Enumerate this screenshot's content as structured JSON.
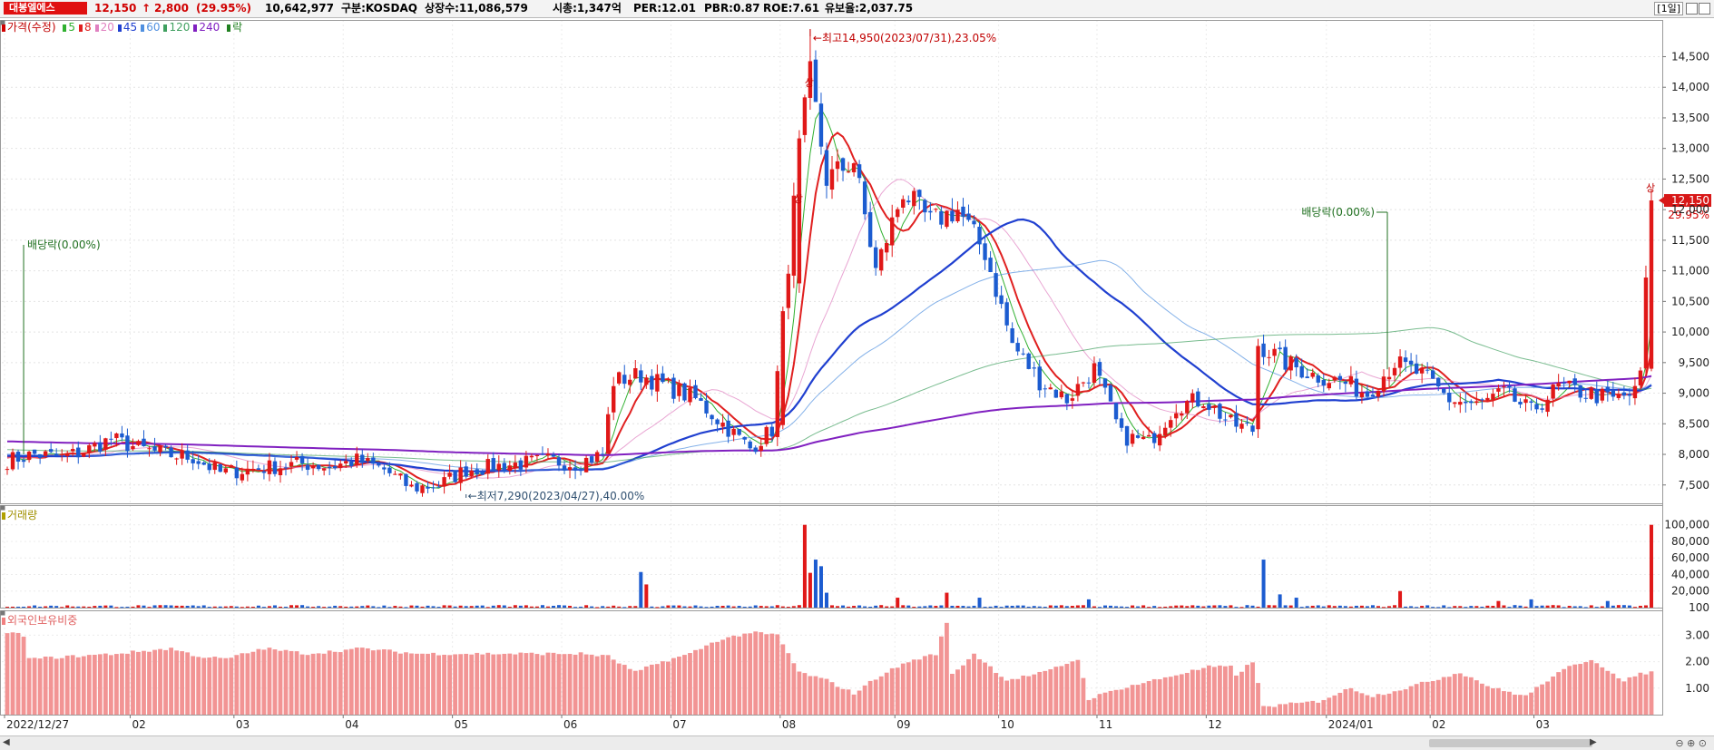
{
  "header": {
    "stock_name": "대봉엘에스",
    "price": "12,150",
    "change_arrow": "↑",
    "change": "2,800",
    "change_pct": "(29.95%)",
    "volume": "10,642,977",
    "market": "구분:KOSDAQ",
    "shares": "상장수:11,086,579",
    "market_cap": "시총:1,347억",
    "per": "PER:12.01",
    "pbr": "PBR:0.87",
    "roe": "ROE:7.61",
    "float_ratio": "유보율:2,037.75",
    "period": "[1일]"
  },
  "legend": {
    "price_label": "가격(수정)",
    "ma": [
      {
        "label": "5",
        "color": "#30b030"
      },
      {
        "label": "8",
        "color": "#e02020"
      },
      {
        "label": "20",
        "color": "#e080c0"
      },
      {
        "label": "45",
        "color": "#2040d0"
      },
      {
        "label": "60",
        "color": "#5090e0"
      },
      {
        "label": "120",
        "color": "#40a060"
      },
      {
        "label": "240",
        "color": "#8020c0"
      }
    ],
    "ex_label": "락"
  },
  "panels": {
    "volume_label": "거래량",
    "foreign_label": "외국인보유비중"
  },
  "chart_data": [
    {
      "type": "candlestick",
      "title": "대봉엘에스 가격(수정)",
      "x_ticks": [
        "2022/12/27",
        "02",
        "03",
        "04",
        "05",
        "06",
        "07",
        "08",
        "09",
        "10",
        "11",
        "12",
        "2024/01",
        "02",
        "03"
      ],
      "ylim": [
        7200,
        15100
      ],
      "y_ticks": [
        7500,
        8000,
        8500,
        9000,
        9500,
        10000,
        10500,
        11000,
        11500,
        12000,
        12500,
        13000,
        13500,
        14000,
        14500
      ],
      "y_tick_labels": [
        "7,500",
        "8,000",
        "8,500",
        "9,000",
        "9,500",
        "10,000",
        "10,500",
        "11,000",
        "11,500",
        "12,000",
        "12,500",
        "13,000",
        "13,500",
        "14,000",
        "14,500"
      ],
      "anchors": [
        [
          0,
          7900
        ],
        [
          5,
          8000
        ],
        [
          10,
          7950
        ],
        [
          14,
          8050
        ],
        [
          19,
          8250
        ],
        [
          24,
          8100
        ],
        [
          29,
          8000
        ],
        [
          34,
          7950
        ],
        [
          39,
          7700
        ],
        [
          44,
          7750
        ],
        [
          49,
          7800
        ],
        [
          54,
          7850
        ],
        [
          59,
          7800
        ],
        [
          64,
          7900
        ],
        [
          69,
          7750
        ],
        [
          74,
          7450
        ],
        [
          79,
          7500
        ],
        [
          84,
          7750
        ],
        [
          89,
          7800
        ],
        [
          94,
          7850
        ],
        [
          99,
          7900
        ],
        [
          104,
          7850
        ],
        [
          109,
          8000
        ],
        [
          111,
          9200
        ],
        [
          116,
          9300
        ],
        [
          121,
          9100
        ],
        [
          126,
          8900
        ],
        [
          131,
          8500
        ],
        [
          136,
          8100
        ],
        [
          140,
          8400
        ],
        [
          142,
          10200
        ],
        [
          145,
          13000
        ],
        [
          147,
          14200
        ],
        [
          150,
          12500
        ],
        [
          155,
          12800
        ],
        [
          159,
          11000
        ],
        [
          164,
          12300
        ],
        [
          169,
          11800
        ],
        [
          174,
          12000
        ],
        [
          179,
          11300
        ],
        [
          184,
          9800
        ],
        [
          189,
          9200
        ],
        [
          194,
          8900
        ],
        [
          199,
          9400
        ],
        [
          204,
          8300
        ],
        [
          209,
          8200
        ],
        [
          214,
          8800
        ],
        [
          219,
          8900
        ],
        [
          224,
          8500
        ],
        [
          228,
          8400
        ],
        [
          229,
          9800
        ],
        [
          234,
          9500
        ],
        [
          239,
          9300
        ],
        [
          244,
          9200
        ],
        [
          249,
          9000
        ],
        [
          254,
          9500
        ],
        [
          259,
          9300
        ],
        [
          264,
          8900
        ],
        [
          269,
          8800
        ],
        [
          274,
          9000
        ],
        [
          279,
          8700
        ],
        [
          284,
          9100
        ],
        [
          289,
          9000
        ],
        [
          294,
          8900
        ],
        [
          298,
          9000
        ],
        [
          299,
          9350
        ],
        [
          301,
          12150
        ]
      ],
      "high": {
        "value": 14950,
        "label": "최고14,950(2023/07/31),23.05%"
      },
      "low": {
        "value": 7290,
        "label": "최저7,290(2023/04/27),40.00%"
      },
      "annotations": [
        {
          "text": "배당락(0.00%)",
          "at": 2
        },
        {
          "text": "배당락(0.00%)",
          "at": 252
        }
      ],
      "limit_up_marker": "상",
      "last_price_tag": "12,150",
      "last_pct_tag": "29.95%",
      "ma_periods": [
        5,
        8,
        20,
        45,
        60,
        120,
        240
      ]
    },
    {
      "type": "bar",
      "title": "거래량",
      "y_ticks": [
        100,
        20000,
        40000,
        60000,
        80000,
        100000
      ],
      "y_tick_labels": [
        "100",
        "20,000",
        "40,000",
        "60,000",
        "80,000",
        "100,000"
      ],
      "ylim": [
        0,
        115000
      ],
      "spikes": [
        [
          116,
          43000
        ],
        [
          117,
          28000
        ],
        [
          146,
          100000
        ],
        [
          147,
          42000
        ],
        [
          148,
          58000
        ],
        [
          149,
          50000
        ],
        [
          150,
          18000
        ],
        [
          163,
          12000
        ],
        [
          172,
          18000
        ],
        [
          178,
          12000
        ],
        [
          198,
          10000
        ],
        [
          230,
          58000
        ],
        [
          233,
          16000
        ],
        [
          236,
          12000
        ],
        [
          255,
          20000
        ],
        [
          273,
          8000
        ],
        [
          279,
          10000
        ],
        [
          293,
          8000
        ],
        [
          301,
          100000
        ]
      ]
    },
    {
      "type": "bar",
      "title": "외국인보유비중",
      "y_ticks": [
        1,
        2,
        3
      ],
      "y_tick_labels": [
        "1.00",
        "2.00",
        "3.00"
      ],
      "ylim": [
        0,
        3.8
      ],
      "anchors": [
        [
          0,
          3.1
        ],
        [
          3,
          3.0
        ],
        [
          4,
          2.1
        ],
        [
          20,
          2.3
        ],
        [
          30,
          2.5
        ],
        [
          35,
          2.2
        ],
        [
          40,
          2.1
        ],
        [
          47,
          2.5
        ],
        [
          55,
          2.3
        ],
        [
          65,
          2.5
        ],
        [
          75,
          2.3
        ],
        [
          85,
          2.3
        ],
        [
          105,
          2.3
        ],
        [
          110,
          2.2
        ],
        [
          115,
          1.6
        ],
        [
          120,
          2.0
        ],
        [
          125,
          2.3
        ],
        [
          130,
          2.8
        ],
        [
          136,
          3.1
        ],
        [
          141,
          3.0
        ],
        [
          145,
          1.6
        ],
        [
          150,
          1.3
        ],
        [
          155,
          0.8
        ],
        [
          160,
          1.5
        ],
        [
          165,
          2.0
        ],
        [
          170,
          2.3
        ],
        [
          172,
          3.5
        ],
        [
          173,
          1.5
        ],
        [
          177,
          2.3
        ],
        [
          183,
          1.3
        ],
        [
          190,
          1.6
        ],
        [
          196,
          2.1
        ],
        [
          198,
          0.6
        ],
        [
          204,
          1.0
        ],
        [
          214,
          1.5
        ],
        [
          220,
          1.8
        ],
        [
          224,
          1.8
        ],
        [
          225,
          1.5
        ],
        [
          228,
          2.0
        ],
        [
          230,
          0.3
        ],
        [
          240,
          0.5
        ],
        [
          246,
          1.0
        ],
        [
          250,
          0.7
        ],
        [
          256,
          1.0
        ],
        [
          266,
          1.6
        ],
        [
          272,
          1.0
        ],
        [
          278,
          0.7
        ],
        [
          282,
          1.3
        ],
        [
          286,
          1.8
        ],
        [
          290,
          2.1
        ],
        [
          293,
          1.7
        ],
        [
          296,
          1.2
        ],
        [
          298,
          1.5
        ],
        [
          301,
          1.6
        ]
      ]
    }
  ]
}
